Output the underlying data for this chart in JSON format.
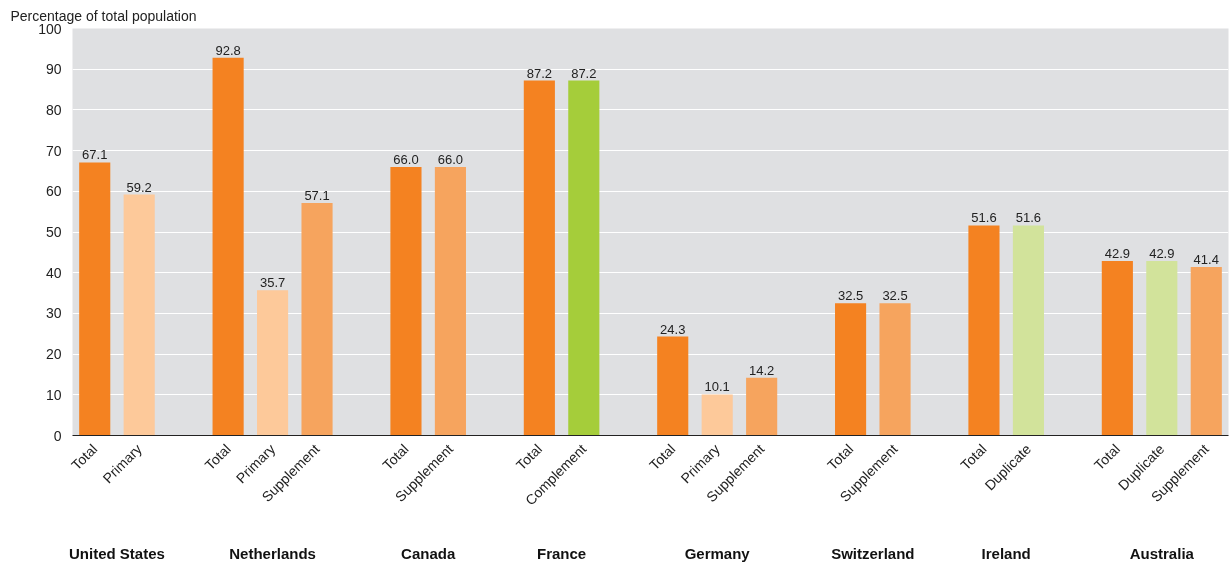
{
  "chart_data": {
    "type": "bar",
    "ylabel": "Percentage of total population",
    "categories": [
      "Total",
      "Primary",
      null,
      "Total",
      "Primary",
      "Supplement",
      null,
      "Total",
      "Supplement",
      null,
      "Total",
      "Complement",
      null,
      "Total",
      "Primary",
      "Supplement",
      null,
      "Total",
      "Supplement",
      null,
      "Total",
      "Duplicate",
      null,
      "Total",
      "Duplicate",
      "Supplement"
    ],
    "values": [
      67.1,
      59.2,
      null,
      92.8,
      35.7,
      57.1,
      null,
      66.0,
      66.0,
      null,
      87.2,
      87.2,
      null,
      24.3,
      10.1,
      14.2,
      null,
      32.5,
      32.5,
      null,
      51.6,
      51.6,
      null,
      42.9,
      42.9,
      41.4
    ],
    "value_labels": [
      "67.1",
      "59.2",
      null,
      "92.8",
      "35.7",
      "57.1",
      null,
      "66.0",
      "66.0",
      null,
      "87.2",
      "87.2",
      null,
      "24.3",
      "10.1",
      "14.2",
      null,
      "32.5",
      "32.5",
      null,
      "51.6",
      "51.6",
      null,
      "42.9",
      "42.9",
      "41.4"
    ],
    "colors": [
      "#f48221",
      "#fdc99a",
      null,
      "#f48221",
      "#fdc99a",
      "#f6a45e",
      null,
      "#f48221",
      "#f6a45e",
      null,
      "#f48221",
      "#a5cd3a",
      null,
      "#f48221",
      "#fdc99a",
      "#f6a45e",
      null,
      "#f48221",
      "#f6a45e",
      null,
      "#f48221",
      "#d2e39b",
      null,
      "#f48221",
      "#d2e39b",
      "#f6a45e"
    ],
    "annotations": [
      "United States",
      "Netherlands",
      "Canada",
      "France",
      "Germany",
      "Switzerland",
      "Ireland",
      "Australia"
    ],
    "ylim": [
      0,
      100
    ],
    "yticks": [
      0,
      10,
      20,
      30,
      40,
      50,
      60,
      70,
      80,
      90,
      100
    ],
    "grid": "y"
  }
}
